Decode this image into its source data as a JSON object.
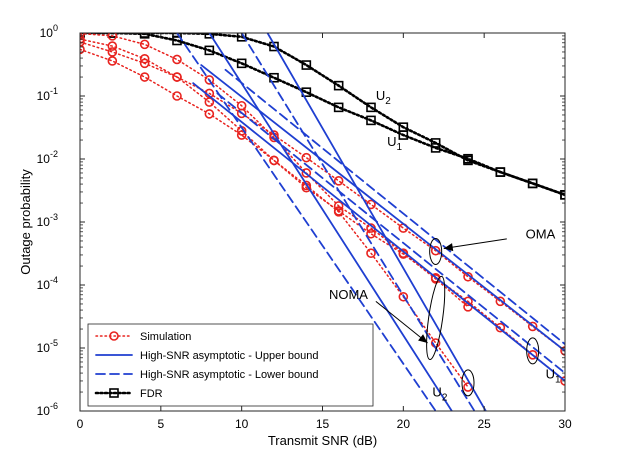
{
  "chart_data": {
    "type": "line",
    "title": "",
    "xlabel": "Transmit SNR (dB)",
    "ylabel": "Outage probability",
    "x_range": [
      0,
      30
    ],
    "y_range": [
      1e-06,
      1
    ],
    "y_scale": "log",
    "grid": false,
    "x_ticks": [
      "0",
      "5",
      "10",
      "15",
      "20",
      "25",
      "30"
    ],
    "y_ticks": [
      {
        "base": "10",
        "exp": "0"
      },
      {
        "base": "10",
        "exp": "-1"
      },
      {
        "base": "10",
        "exp": "-2"
      },
      {
        "base": "10",
        "exp": "-3"
      },
      {
        "base": "10",
        "exp": "-4"
      },
      {
        "base": "10",
        "exp": "-5"
      },
      {
        "base": "10",
        "exp": "-6"
      }
    ],
    "legend": {
      "placement": "bottom-left",
      "entries": [
        {
          "label": "Simulation",
          "style": "sim"
        },
        {
          "label": "High-SNR asymptotic - Upper bound",
          "style": "upper"
        },
        {
          "label": "High-SNR asymptotic - Lower bound",
          "style": "lower"
        },
        {
          "label": "FDR",
          "style": "fdr"
        }
      ]
    },
    "colors": {
      "sim": "#e8231f",
      "asym": "#1f3fd1",
      "fdr": "#000000"
    },
    "series": [
      {
        "name": "FDR U2",
        "style": "fdr",
        "x": [
          0,
          2,
          4,
          6,
          8,
          10,
          12,
          14,
          16,
          18,
          20,
          22,
          24,
          26,
          28,
          30
        ],
        "y": [
          1.0,
          1.0,
          1.0,
          1.0,
          0.97,
          0.87,
          0.61,
          0.31,
          0.146,
          0.066,
          0.032,
          0.018,
          0.0095,
          0.0062,
          0.0041,
          0.0027
        ]
      },
      {
        "name": "FDR U1",
        "style": "fdr",
        "x": [
          0,
          2,
          4,
          6,
          8,
          10,
          12,
          14,
          16,
          18,
          20,
          22,
          24,
          26,
          28,
          30
        ],
        "y": [
          1.0,
          1.0,
          0.97,
          0.76,
          0.53,
          0.33,
          0.195,
          0.115,
          0.066,
          0.041,
          0.024,
          0.015,
          0.0101,
          0.0062,
          0.0041,
          0.0027
        ]
      },
      {
        "name": "Sim OMA U2",
        "style": "sim",
        "x": [
          0,
          2,
          4,
          6,
          8,
          10,
          12,
          14,
          16,
          18,
          20,
          22,
          24,
          26,
          28,
          30
        ],
        "y": [
          0.72,
          0.5,
          0.33,
          0.2,
          0.11,
          0.053,
          0.024,
          0.0105,
          0.0045,
          0.0019,
          0.0008,
          0.00035,
          0.000135,
          5.5e-05,
          2.2e-05,
          9e-06
        ]
      },
      {
        "name": "Sim OMA U1",
        "style": "sim",
        "x": [
          0,
          2,
          4,
          6,
          8,
          10,
          12,
          14,
          16,
          18,
          20,
          22,
          24,
          26,
          28,
          30
        ],
        "y": [
          0.8,
          0.62,
          0.39,
          0.2,
          0.08,
          0.028,
          0.0095,
          0.0035,
          0.0015,
          0.00065,
          0.00031,
          0.00013,
          5.5e-05,
          2.1e-05,
          7.8e-06,
          3e-06
        ]
      },
      {
        "name": "Sim NOMA U2",
        "style": "sim",
        "x": [
          0,
          2,
          4,
          6,
          8,
          10,
          12,
          14,
          16,
          18,
          20,
          22,
          24
        ],
        "y": [
          0.98,
          0.9,
          0.66,
          0.38,
          0.18,
          0.07,
          0.022,
          0.006,
          0.0018,
          0.0008,
          0.00032,
          0.000125,
          4.5e-05
        ]
      },
      {
        "name": "Sim NOMA U1",
        "style": "sim",
        "x": [
          0,
          2,
          4,
          6,
          8,
          10,
          12,
          14,
          16,
          18,
          20,
          22,
          24
        ],
        "y": [
          0.55,
          0.36,
          0.2,
          0.1,
          0.052,
          0.024,
          0.0095,
          0.0038,
          0.00145,
          0.00032,
          6.5e-05,
          1.2e-05,
          2.4e-06
        ]
      },
      {
        "name": "Asym OMA upper",
        "style": "upper",
        "x": [
          7.5,
          30
        ],
        "y": [
          0.31,
          9e-06
        ]
      },
      {
        "name": "Asym OMA lower",
        "style": "lower",
        "x": [
          9,
          30
        ],
        "y": [
          0.26,
          1.15e-05
        ]
      },
      {
        "name": "Asym OMA lower 2",
        "style": "lower",
        "x": [
          8.5,
          30
        ],
        "y": [
          0.11,
          4e-06
        ]
      },
      {
        "name": "Asym OMA upper 2",
        "style": "upper",
        "x": [
          7,
          30
        ],
        "y": [
          0.16,
          3e-06
        ]
      },
      {
        "name": "Asym NOMA upper",
        "style": "upper",
        "x": [
          11.6,
          25.1
        ],
        "y": [
          1.0,
          1e-06
        ]
      },
      {
        "name": "Asym NOMA lower",
        "style": "lower",
        "x": [
          10,
          24.4
        ],
        "y": [
          1.0,
          1e-06
        ]
      },
      {
        "name": "Asym NOMA upper 2",
        "style": "upper",
        "x": [
          8,
          23
        ],
        "y": [
          1.0,
          1e-06
        ]
      },
      {
        "name": "Asym NOMA lower 2",
        "style": "lower",
        "x": [
          6,
          22
        ],
        "y": [
          1.0,
          1e-06
        ]
      }
    ],
    "annotations": [
      {
        "text": "OMA",
        "at": [
          29.4,
          0.00055
        ]
      },
      {
        "text": "NOMA",
        "at": [
          15.4,
          6e-05
        ]
      },
      {
        "text": "U",
        "sub": "2",
        "at": [
          18.3,
          0.086
        ]
      },
      {
        "text": "U",
        "sub": "1",
        "at": [
          19.0,
          0.016
        ]
      },
      {
        "text": "U",
        "sub": "2",
        "at": [
          21.8,
          1.7e-06
        ]
      },
      {
        "text": "U",
        "sub": "1",
        "at": [
          28.8,
          3.3e-06
        ]
      }
    ]
  }
}
